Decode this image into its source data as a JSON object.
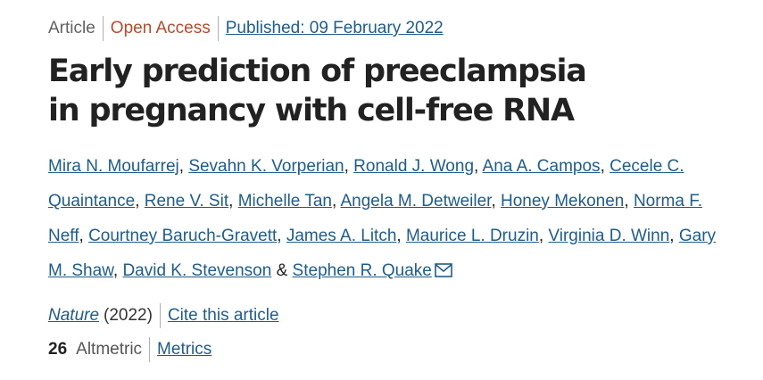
{
  "header": {
    "article_type": "Article",
    "access": "Open Access",
    "published": "Published: 09 February 2022"
  },
  "title": "Early prediction of preeclampsia in pregnancy with cell-free RNA",
  "authors": [
    "Mira N. Moufarrej",
    "Sevahn K. Vorperian",
    "Ronald J. Wong",
    "Ana A. Campos",
    "Cecele C. Quaintance",
    "Rene V. Sit",
    "Michelle Tan",
    "Angela M. Detweiler",
    "Honey Mekonen",
    "Norma F. Neff",
    "Courtney Baruch-Gravett",
    "James A. Litch",
    "Maurice L. Druzin",
    "Virginia D. Winn",
    "Gary M. Shaw",
    "David K. Stevenson",
    "Stephen R. Quake"
  ],
  "author_separator": ", ",
  "author_conjunction": " & ",
  "contact_icon": "envelope-icon",
  "citation": {
    "journal": "Nature",
    "year": "(2022)",
    "cite_link": "Cite this article"
  },
  "metrics": {
    "altmetric_score": "26",
    "altmetric_label": "Altmetric",
    "metrics_link": "Metrics"
  },
  "colors": {
    "link": "#1f5c8a",
    "open_access": "#b24c2d",
    "text": "#222222",
    "muted": "#626262",
    "divider": "#b0b0b0"
  }
}
